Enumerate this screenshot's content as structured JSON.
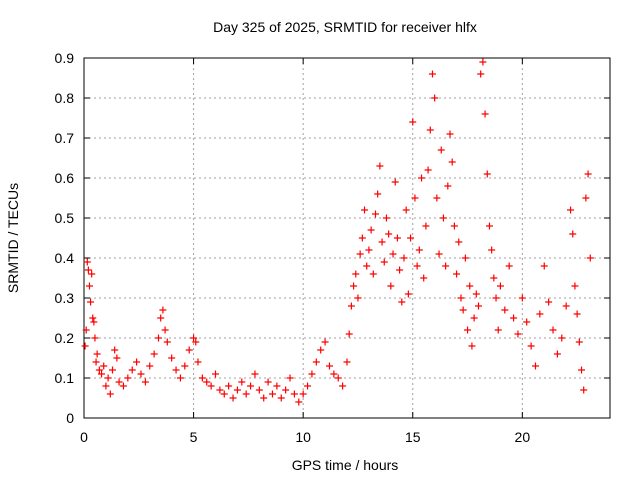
{
  "chart_data": {
    "type": "scatter",
    "title": "Day 325 of 2025, SRMTID for receiver hlfx",
    "xlabel": "GPS time / hours",
    "ylabel": "SRMTID / TECUs",
    "xlim": [
      0,
      24
    ],
    "ylim": [
      0,
      0.9
    ],
    "xticks": [
      0,
      5,
      10,
      15,
      20
    ],
    "xtick_labels": [
      "0",
      "5",
      "10",
      "15",
      "20"
    ],
    "yticks": [
      0,
      0.1,
      0.2,
      0.3,
      0.4,
      0.5,
      0.6,
      0.7,
      0.8,
      0.9
    ],
    "ytick_labels": [
      "0",
      "0.1",
      "0.2",
      "0.3",
      "0.4",
      "0.5",
      "0.6",
      "0.7",
      "0.8",
      "0.9"
    ],
    "grid": true,
    "marker": "+",
    "color": "#ff0000",
    "series": [
      {
        "name": "SRMTID",
        "points": [
          [
            0.05,
            0.18
          ],
          [
            0.1,
            0.22
          ],
          [
            0.15,
            0.39
          ],
          [
            0.2,
            0.37
          ],
          [
            0.25,
            0.33
          ],
          [
            0.3,
            0.29
          ],
          [
            0.35,
            0.36
          ],
          [
            0.4,
            0.25
          ],
          [
            0.45,
            0.24
          ],
          [
            0.5,
            0.2
          ],
          [
            0.55,
            0.14
          ],
          [
            0.6,
            0.16
          ],
          [
            0.7,
            0.12
          ],
          [
            0.8,
            0.11
          ],
          [
            0.9,
            0.13
          ],
          [
            1.0,
            0.08
          ],
          [
            1.1,
            0.1
          ],
          [
            1.2,
            0.06
          ],
          [
            1.3,
            0.12
          ],
          [
            1.4,
            0.17
          ],
          [
            1.5,
            0.15
          ],
          [
            1.6,
            0.09
          ],
          [
            1.8,
            0.08
          ],
          [
            2.0,
            0.1
          ],
          [
            2.2,
            0.12
          ],
          [
            2.4,
            0.14
          ],
          [
            2.6,
            0.11
          ],
          [
            2.8,
            0.09
          ],
          [
            3.0,
            0.13
          ],
          [
            3.2,
            0.16
          ],
          [
            3.4,
            0.2
          ],
          [
            3.5,
            0.25
          ],
          [
            3.6,
            0.27
          ],
          [
            3.7,
            0.22
          ],
          [
            3.8,
            0.19
          ],
          [
            4.0,
            0.15
          ],
          [
            4.2,
            0.12
          ],
          [
            4.4,
            0.1
          ],
          [
            4.6,
            0.13
          ],
          [
            4.8,
            0.17
          ],
          [
            5.0,
            0.2
          ],
          [
            5.1,
            0.19
          ],
          [
            5.2,
            0.14
          ],
          [
            5.4,
            0.1
          ],
          [
            5.6,
            0.09
          ],
          [
            5.8,
            0.08
          ],
          [
            6.0,
            0.11
          ],
          [
            6.2,
            0.07
          ],
          [
            6.4,
            0.06
          ],
          [
            6.6,
            0.08
          ],
          [
            6.8,
            0.05
          ],
          [
            7.0,
            0.07
          ],
          [
            7.2,
            0.09
          ],
          [
            7.4,
            0.06
          ],
          [
            7.6,
            0.08
          ],
          [
            7.8,
            0.11
          ],
          [
            8.0,
            0.07
          ],
          [
            8.2,
            0.05
          ],
          [
            8.4,
            0.09
          ],
          [
            8.6,
            0.06
          ],
          [
            8.8,
            0.08
          ],
          [
            9.0,
            0.05
          ],
          [
            9.2,
            0.07
          ],
          [
            9.4,
            0.1
          ],
          [
            9.6,
            0.06
          ],
          [
            9.8,
            0.04
          ],
          [
            10.0,
            0.06
          ],
          [
            10.2,
            0.08
          ],
          [
            10.4,
            0.11
          ],
          [
            10.6,
            0.14
          ],
          [
            10.8,
            0.17
          ],
          [
            11.0,
            0.19
          ],
          [
            11.2,
            0.13
          ],
          [
            11.4,
            0.11
          ],
          [
            11.6,
            0.1
          ],
          [
            11.8,
            0.08
          ],
          [
            12.0,
            0.14
          ],
          [
            12.1,
            0.21
          ],
          [
            12.2,
            0.28
          ],
          [
            12.3,
            0.33
          ],
          [
            12.4,
            0.36
          ],
          [
            12.5,
            0.3
          ],
          [
            12.6,
            0.41
          ],
          [
            12.7,
            0.45
          ],
          [
            12.8,
            0.52
          ],
          [
            12.9,
            0.38
          ],
          [
            13.0,
            0.42
          ],
          [
            13.1,
            0.47
          ],
          [
            13.2,
            0.36
          ],
          [
            13.3,
            0.51
          ],
          [
            13.4,
            0.56
          ],
          [
            13.5,
            0.63
          ],
          [
            13.6,
            0.44
          ],
          [
            13.7,
            0.39
          ],
          [
            13.8,
            0.5
          ],
          [
            13.9,
            0.46
          ],
          [
            14.0,
            0.33
          ],
          [
            14.1,
            0.41
          ],
          [
            14.2,
            0.59
          ],
          [
            14.3,
            0.45
          ],
          [
            14.4,
            0.37
          ],
          [
            14.5,
            0.29
          ],
          [
            14.6,
            0.4
          ],
          [
            14.7,
            0.52
          ],
          [
            14.8,
            0.31
          ],
          [
            14.9,
            0.45
          ],
          [
            15.0,
            0.74
          ],
          [
            15.1,
            0.55
          ],
          [
            15.2,
            0.38
          ],
          [
            15.3,
            0.42
          ],
          [
            15.4,
            0.6
          ],
          [
            15.5,
            0.35
          ],
          [
            15.6,
            0.48
          ],
          [
            15.7,
            0.62
          ],
          [
            15.8,
            0.72
          ],
          [
            15.9,
            0.86
          ],
          [
            16.0,
            0.8
          ],
          [
            16.1,
            0.55
          ],
          [
            16.2,
            0.41
          ],
          [
            16.3,
            0.67
          ],
          [
            16.4,
            0.5
          ],
          [
            16.5,
            0.38
          ],
          [
            16.6,
            0.58
          ],
          [
            16.7,
            0.71
          ],
          [
            16.8,
            0.64
          ],
          [
            16.9,
            0.48
          ],
          [
            17.0,
            0.36
          ],
          [
            17.1,
            0.44
          ],
          [
            17.2,
            0.3
          ],
          [
            17.3,
            0.27
          ],
          [
            17.4,
            0.4
          ],
          [
            17.5,
            0.22
          ],
          [
            17.6,
            0.33
          ],
          [
            17.7,
            0.18
          ],
          [
            17.8,
            0.25
          ],
          [
            17.9,
            0.31
          ],
          [
            18.0,
            0.28
          ],
          [
            18.1,
            0.86
          ],
          [
            18.2,
            0.89
          ],
          [
            18.3,
            0.76
          ],
          [
            18.4,
            0.61
          ],
          [
            18.5,
            0.48
          ],
          [
            18.6,
            0.42
          ],
          [
            18.7,
            0.35
          ],
          [
            18.8,
            0.3
          ],
          [
            18.9,
            0.22
          ],
          [
            19.0,
            0.33
          ],
          [
            19.2,
            0.27
          ],
          [
            19.4,
            0.38
          ],
          [
            19.6,
            0.25
          ],
          [
            19.8,
            0.21
          ],
          [
            20.0,
            0.3
          ],
          [
            20.2,
            0.24
          ],
          [
            20.4,
            0.18
          ],
          [
            20.6,
            0.13
          ],
          [
            20.8,
            0.26
          ],
          [
            21.0,
            0.38
          ],
          [
            21.2,
            0.29
          ],
          [
            21.4,
            0.22
          ],
          [
            21.6,
            0.16
          ],
          [
            21.8,
            0.2
          ],
          [
            22.0,
            0.28
          ],
          [
            22.2,
            0.52
          ],
          [
            22.3,
            0.46
          ],
          [
            22.4,
            0.33
          ],
          [
            22.5,
            0.26
          ],
          [
            22.6,
            0.19
          ],
          [
            22.7,
            0.12
          ],
          [
            22.8,
            0.07
          ],
          [
            22.9,
            0.55
          ],
          [
            23.0,
            0.61
          ],
          [
            23.1,
            0.4
          ]
        ]
      }
    ]
  }
}
